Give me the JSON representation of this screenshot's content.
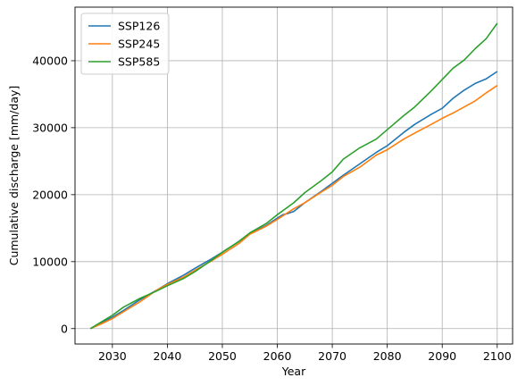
{
  "chart_data": {
    "type": "line",
    "title": "",
    "xlabel": "Year",
    "ylabel": "Cumulative discharge [mm/day]",
    "xlim": [
      2023.2,
      2102.8
    ],
    "ylim": [
      -2300,
      48000
    ],
    "xticks": [
      2030,
      2040,
      2050,
      2060,
      2070,
      2080,
      2090,
      2100
    ],
    "yticks": [
      0,
      10000,
      20000,
      30000,
      40000
    ],
    "grid": true,
    "legend_position": "top-left",
    "series": [
      {
        "name": "SSP126",
        "color": "#1f77b4",
        "x": [
          2026,
          2028,
          2030,
          2032,
          2035,
          2038,
          2040,
          2043,
          2045,
          2048,
          2050,
          2053,
          2055,
          2058,
          2060,
          2061,
          2062,
          2063,
          2065,
          2068,
          2070,
          2072,
          2075,
          2078,
          2080,
          2083,
          2085,
          2088,
          2090,
          2092,
          2094,
          2096,
          2098,
          2100
        ],
        "y": [
          0,
          900,
          1700,
          2700,
          4300,
          5700,
          6700,
          8000,
          9000,
          10400,
          11400,
          13000,
          14200,
          15400,
          16500,
          17000,
          17200,
          17500,
          18800,
          20500,
          21700,
          22900,
          24600,
          26300,
          27300,
          29300,
          30500,
          32000,
          32900,
          34400,
          35600,
          36600,
          37300,
          38400
        ]
      },
      {
        "name": "SSP245",
        "color": "#ff7f0e",
        "x": [
          2026,
          2028,
          2030,
          2032,
          2035,
          2038,
          2040,
          2043,
          2045,
          2048,
          2050,
          2053,
          2055,
          2058,
          2060,
          2063,
          2065,
          2068,
          2070,
          2072,
          2075,
          2078,
          2080,
          2083,
          2085,
          2088,
          2090,
          2092,
          2094,
          2096,
          2098,
          2100
        ],
        "y": [
          0,
          700,
          1500,
          2500,
          4000,
          5700,
          6600,
          7700,
          8700,
          10100,
          11100,
          12700,
          14100,
          15300,
          16300,
          17900,
          18800,
          20400,
          21400,
          22700,
          24100,
          25900,
          26700,
          28300,
          29200,
          30500,
          31400,
          32200,
          33100,
          34000,
          35200,
          36300
        ]
      },
      {
        "name": "SSP585",
        "color": "#2ca02c",
        "x": [
          2026,
          2028,
          2030,
          2032,
          2035,
          2038,
          2040,
          2043,
          2045,
          2048,
          2050,
          2053,
          2055,
          2058,
          2060,
          2063,
          2065,
          2068,
          2070,
          2072,
          2075,
          2078,
          2080,
          2083,
          2085,
          2088,
          2090,
          2092,
          2094,
          2096,
          2098,
          2100
        ],
        "y": [
          0,
          1000,
          2000,
          3200,
          4500,
          5600,
          6400,
          7500,
          8500,
          10200,
          11400,
          13000,
          14300,
          15700,
          17000,
          18800,
          20300,
          22100,
          23400,
          25300,
          27000,
          28300,
          29700,
          31800,
          33100,
          35500,
          37200,
          38900,
          40100,
          41800,
          43300,
          45600
        ]
      }
    ]
  }
}
